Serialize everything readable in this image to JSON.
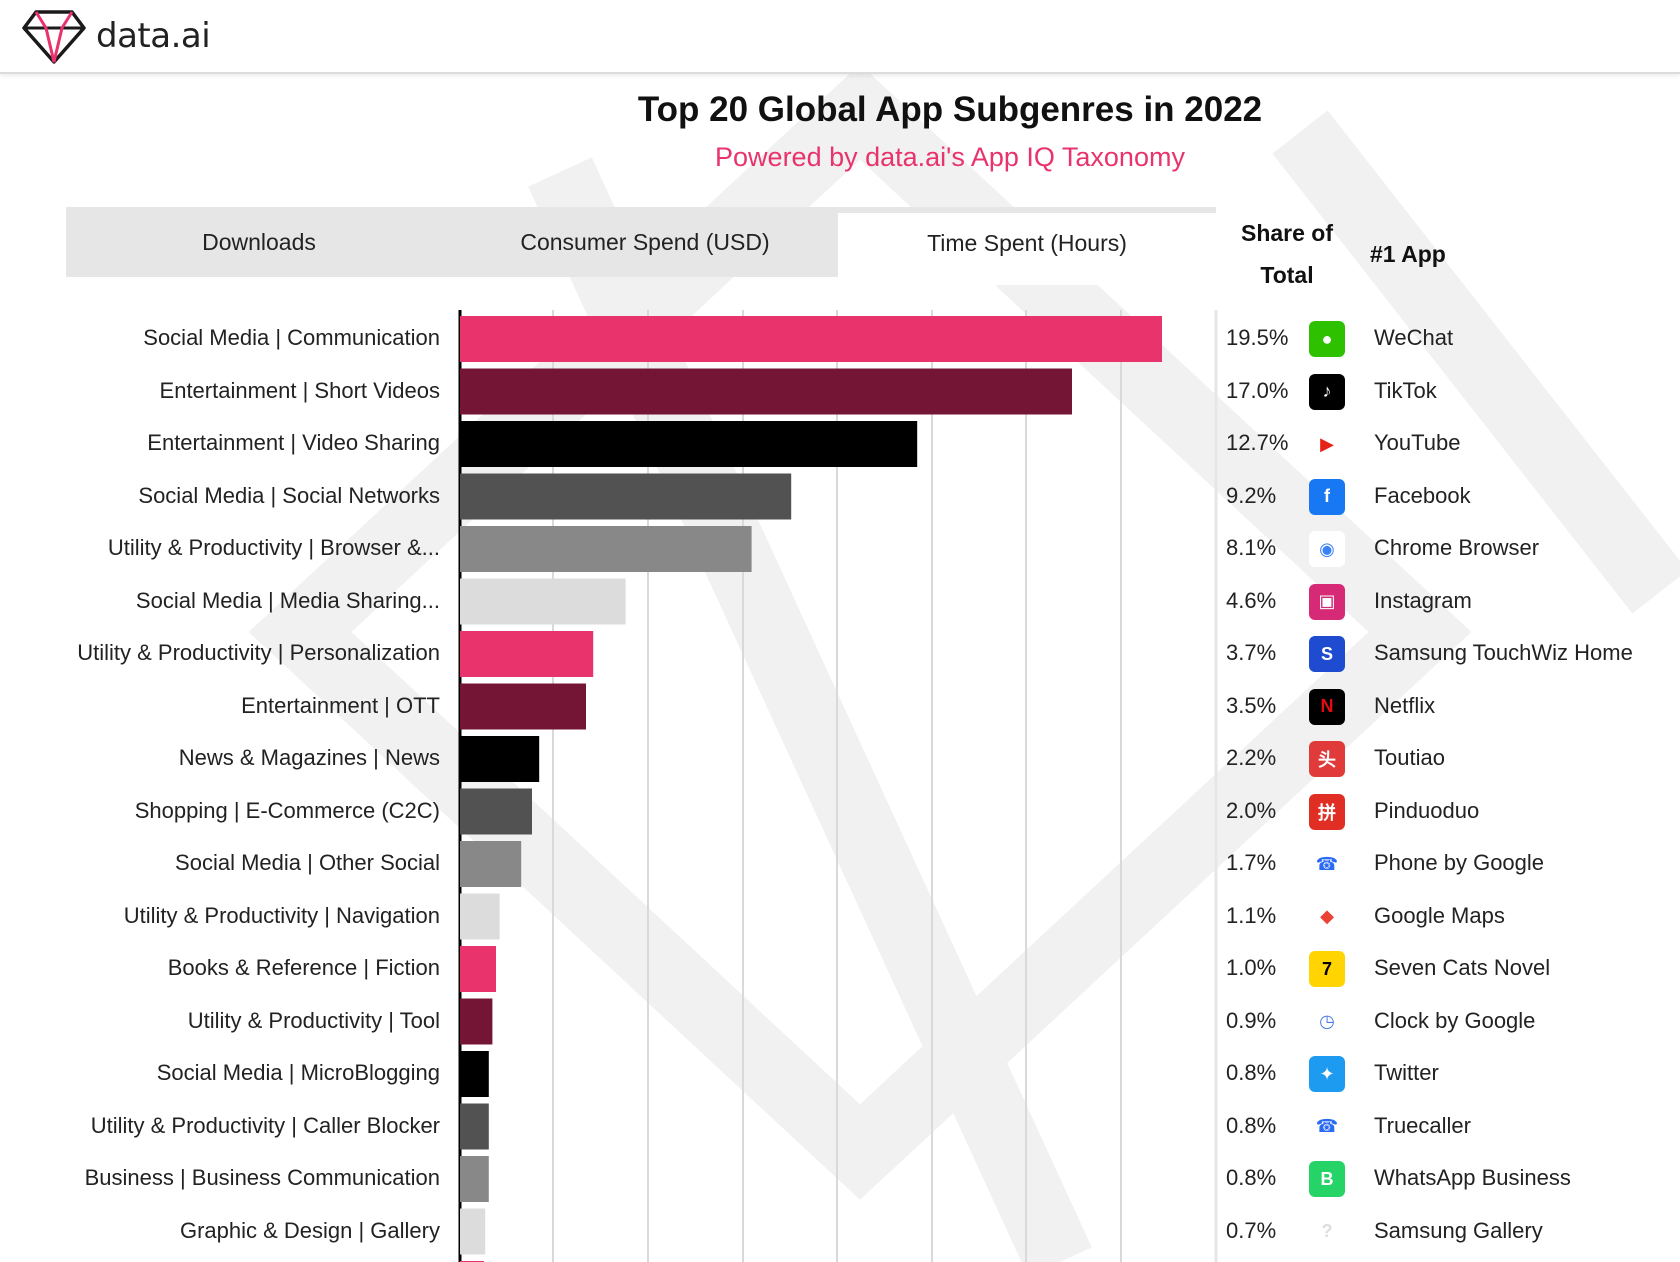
{
  "brand": {
    "name": "data.ai"
  },
  "chart_data": {
    "type": "bar",
    "orientation": "horizontal",
    "title": "Top 20 Global App Subgenres in 2022",
    "subtitle": "Powered by data.ai's App IQ Taxonomy",
    "tabs": [
      "Downloads",
      "Consumer Spend (USD)",
      "Time Spent (Hours)"
    ],
    "active_tab": "Time Spent (Hours)",
    "columns": {
      "share_label": "Share of Total",
      "app_label": "#1 App"
    },
    "categories": [
      "Social Media | Communication",
      "Entertainment | Short Videos",
      "Entertainment | Video Sharing",
      "Social Media | Social Networks",
      "Utility & Productivity | Browser &...",
      "Social Media | Media Sharing...",
      "Utility & Productivity | Personalization",
      "Entertainment | OTT",
      "News & Magazines | News",
      "Shopping | E-Commerce (C2C)",
      "Social Media | Other Social",
      "Utility & Productivity | Navigation",
      "Books & Reference | Fiction",
      "Utility & Productivity | Tool",
      "Social Media | MicroBlogging",
      "Utility & Productivity | Caller Blocker",
      "Business | Business Communication",
      "Graphic & Design | Gallery"
    ],
    "values": [
      19.5,
      17.0,
      12.7,
      9.2,
      8.1,
      4.6,
      3.7,
      3.5,
      2.2,
      2.0,
      1.7,
      1.1,
      1.0,
      0.9,
      0.8,
      0.8,
      0.8,
      0.7
    ],
    "share_labels": [
      "19.5%",
      "17.0%",
      "12.7%",
      "9.2%",
      "8.1%",
      "4.6%",
      "3.7%",
      "3.5%",
      "2.2%",
      "2.0%",
      "1.7%",
      "1.1%",
      "1.0%",
      "0.9%",
      "0.8%",
      "0.8%",
      "0.8%",
      "0.7%"
    ],
    "top_apps": [
      "WeChat",
      "TikTok",
      "YouTube",
      "Facebook",
      "Chrome Browser",
      "Instagram",
      "Samsung TouchWiz Home",
      "Netflix",
      "Toutiao",
      "Pinduoduo",
      "Phone by Google",
      "Google Maps",
      "Seven Cats Novel",
      "Clock by Google",
      "Twitter",
      "Truecaller",
      "WhatsApp Business",
      "Samsung Gallery"
    ],
    "app_icons": [
      "wechat-icon",
      "tiktok-icon",
      "youtube-icon",
      "facebook-icon",
      "chrome-icon",
      "instagram-icon",
      "samsung-home-icon",
      "netflix-icon",
      "toutiao-icon",
      "pinduoduo-icon",
      "phone-icon",
      "maps-icon",
      "seven-cats-icon",
      "clock-icon",
      "twitter-icon",
      "truecaller-icon",
      "whatsapp-business-icon",
      "samsung-gallery-icon"
    ],
    "bar_colors": [
      "#e8336d",
      "#741536",
      "#000000",
      "#525252",
      "#888888",
      "#dcdcdc"
    ],
    "xlim": [
      0,
      20
    ],
    "grid": true,
    "legend": "none"
  }
}
